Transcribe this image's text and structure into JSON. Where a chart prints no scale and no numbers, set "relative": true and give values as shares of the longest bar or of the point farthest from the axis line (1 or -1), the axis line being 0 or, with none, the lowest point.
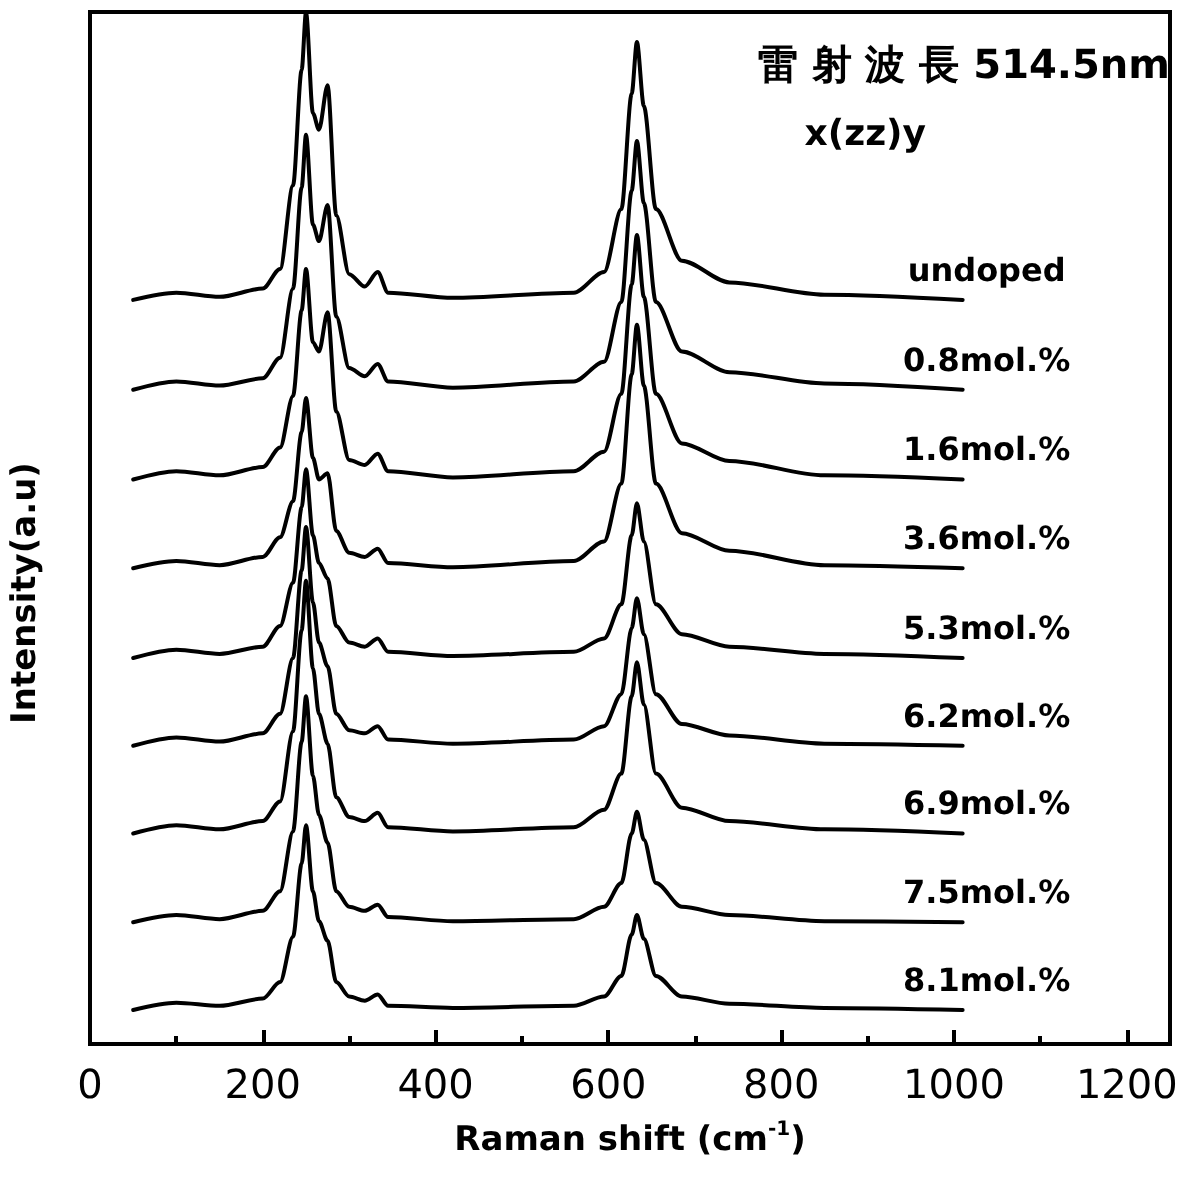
{
  "chart_data": {
    "type": "line",
    "relative": true,
    "xlabel": "Raman shift (cm$^{-1}$)",
    "ylabel": "Intensity(a.u)",
    "annotations": [
      "雷 射 波 長 514.5nm",
      "x(zz)y"
    ],
    "x": [
      50,
      100,
      150,
      200,
      220,
      235,
      245,
      250,
      258,
      265,
      275,
      285,
      300,
      318,
      333,
      345,
      420,
      560,
      595,
      615,
      627,
      633,
      641,
      655,
      685,
      740,
      850,
      1010
    ],
    "xlim": [
      0,
      1250
    ],
    "xticks": [
      0,
      200,
      400,
      600,
      800,
      1000,
      1200
    ],
    "series": [
      {
        "name": "undoped",
        "color": "#000000",
        "values": [
          0.721,
          0.728,
          0.724,
          0.732,
          0.751,
          0.832,
          0.944,
          1.0,
          0.902,
          0.886,
          0.929,
          0.803,
          0.746,
          0.734,
          0.748,
          0.728,
          0.723,
          0.728,
          0.748,
          0.809,
          0.921,
          0.971,
          0.909,
          0.809,
          0.759,
          0.738,
          0.726,
          0.721
        ]
      },
      {
        "name": "0.8mol.%",
        "color": "#000000",
        "values": [
          0.634,
          0.642,
          0.638,
          0.645,
          0.665,
          0.732,
          0.83,
          0.881,
          0.794,
          0.778,
          0.813,
          0.705,
          0.655,
          0.647,
          0.659,
          0.642,
          0.636,
          0.642,
          0.661,
          0.719,
          0.827,
          0.875,
          0.815,
          0.719,
          0.671,
          0.651,
          0.64,
          0.634
        ]
      },
      {
        "name": "1.6mol.%",
        "color": "#000000",
        "values": [
          0.547,
          0.555,
          0.551,
          0.559,
          0.578,
          0.628,
          0.711,
          0.751,
          0.68,
          0.671,
          0.709,
          0.613,
          0.566,
          0.561,
          0.572,
          0.555,
          0.549,
          0.555,
          0.574,
          0.63,
          0.736,
          0.784,
          0.724,
          0.63,
          0.582,
          0.565,
          0.551,
          0.547
        ]
      },
      {
        "name": "3.6mol.%",
        "color": "#000000",
        "values": [
          0.461,
          0.468,
          0.464,
          0.472,
          0.491,
          0.526,
          0.593,
          0.626,
          0.568,
          0.547,
          0.553,
          0.497,
          0.476,
          0.472,
          0.48,
          0.466,
          0.462,
          0.468,
          0.487,
          0.543,
          0.649,
          0.697,
          0.638,
          0.543,
          0.495,
          0.478,
          0.464,
          0.461
        ]
      },
      {
        "name": "5.3mol.%",
        "color": "#000000",
        "values": [
          0.374,
          0.382,
          0.378,
          0.385,
          0.405,
          0.447,
          0.52,
          0.557,
          0.493,
          0.466,
          0.451,
          0.405,
          0.389,
          0.385,
          0.393,
          0.38,
          0.376,
          0.38,
          0.393,
          0.426,
          0.493,
          0.524,
          0.487,
          0.426,
          0.397,
          0.385,
          0.378,
          0.374
        ]
      },
      {
        "name": "6.2mol.%",
        "color": "#000000",
        "values": [
          0.289,
          0.297,
          0.293,
          0.301,
          0.32,
          0.374,
          0.459,
          0.501,
          0.428,
          0.389,
          0.366,
          0.32,
          0.304,
          0.301,
          0.308,
          0.295,
          0.291,
          0.295,
          0.308,
          0.339,
          0.403,
          0.432,
          0.397,
          0.339,
          0.31,
          0.299,
          0.291,
          0.289
        ]
      },
      {
        "name": "6.9mol.%",
        "color": "#000000",
        "values": [
          0.204,
          0.212,
          0.208,
          0.216,
          0.235,
          0.303,
          0.401,
          0.449,
          0.364,
          0.32,
          0.291,
          0.239,
          0.22,
          0.216,
          0.224,
          0.21,
          0.206,
          0.21,
          0.227,
          0.262,
          0.337,
          0.37,
          0.329,
          0.262,
          0.229,
          0.216,
          0.208,
          0.204
        ]
      },
      {
        "name": "7.5mol.%",
        "color": "#000000",
        "values": [
          0.118,
          0.125,
          0.121,
          0.129,
          0.148,
          0.206,
          0.293,
          0.337,
          0.26,
          0.222,
          0.195,
          0.148,
          0.133,
          0.129,
          0.135,
          0.123,
          0.119,
          0.121,
          0.133,
          0.156,
          0.204,
          0.225,
          0.198,
          0.156,
          0.133,
          0.125,
          0.119,
          0.118
        ]
      },
      {
        "name": "8.1mol.%",
        "color": "#000000",
        "values": [
          0.033,
          0.04,
          0.037,
          0.044,
          0.06,
          0.104,
          0.175,
          0.212,
          0.148,
          0.119,
          0.1,
          0.06,
          0.046,
          0.042,
          0.048,
          0.037,
          0.035,
          0.037,
          0.046,
          0.066,
          0.106,
          0.125,
          0.102,
          0.066,
          0.046,
          0.039,
          0.035,
          0.033
        ]
      }
    ]
  }
}
